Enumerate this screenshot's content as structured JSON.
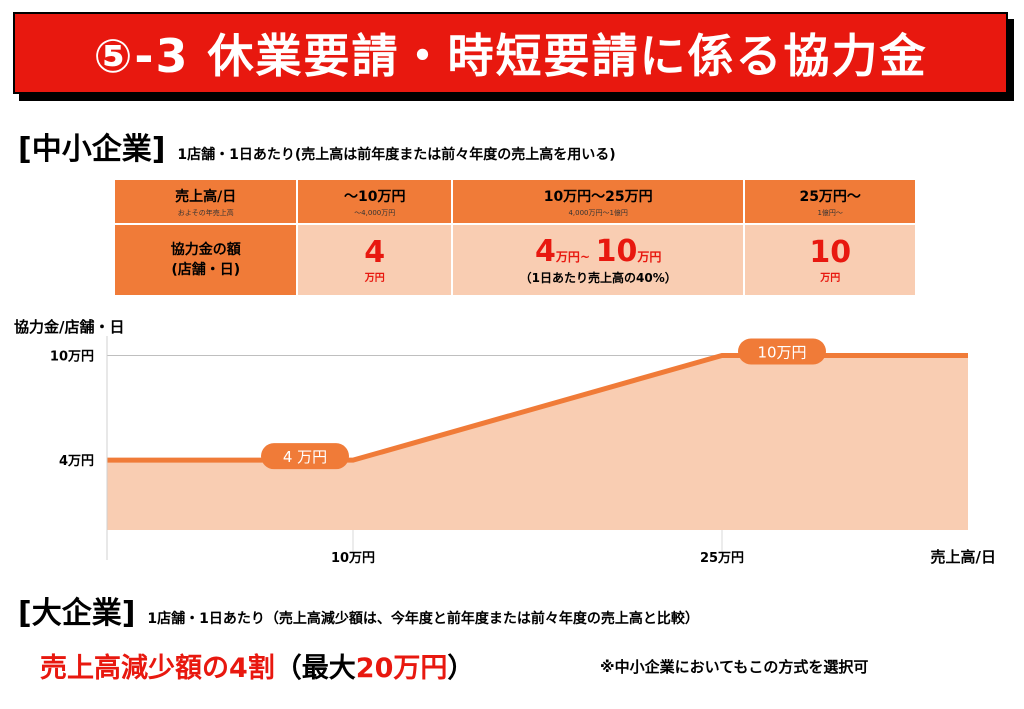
{
  "header": {
    "title": "⑤-3 休業要請・時短要請に係る協力金"
  },
  "sme": {
    "title": "[中小企業]",
    "note": "1店舗・1日あたり(売上高は前年度または前々年度の売上高を用いる)"
  },
  "table": {
    "row_header": {
      "label": "売上高/日",
      "sub": "およその年売上高"
    },
    "columns": [
      {
        "label": "～10万円",
        "sub": "～4,000万円"
      },
      {
        "label": "10万円～25万円",
        "sub": "4,000万円～1億円"
      },
      {
        "label": "25万円～",
        "sub": "1億円～"
      }
    ],
    "value_header": {
      "line1": "協力金の額",
      "line2": "(店舗・日)"
    },
    "values": {
      "col1": {
        "amount": "4",
        "unit": "万円"
      },
      "col2": {
        "low": "4",
        "low_unit": "万円",
        "sep": "~",
        "high": "10",
        "high_unit": "万円",
        "note": "（1日あたり売上高の40%）"
      },
      "col3": {
        "amount": "10",
        "unit": "万円"
      }
    }
  },
  "chart_data": {
    "type": "area",
    "ylabel": "協力金/店舗・日",
    "xlabel": "売上高/日",
    "y_ticks": [
      "10万円",
      "4万円"
    ],
    "x_ticks": [
      "10万円",
      "25万円"
    ],
    "x": [
      0,
      10,
      25,
      35
    ],
    "values": [
      4,
      4,
      10,
      10
    ],
    "xlim": [
      0,
      35
    ],
    "ylim": [
      0,
      11
    ],
    "annotations": [
      "4 万円",
      "10万円"
    ],
    "colors": {
      "line": "#f07b38",
      "fill": "#f9cdb2"
    }
  },
  "large": {
    "title": "[大企業]",
    "note": "1店舗・1日あたり（売上高減少額は、今年度と前年度または前々年度の売上高と比較）",
    "rule_red1": "売上高減少額の4割",
    "rule_black1": "（",
    "rule_black2": "最大",
    "rule_red2": "20万円",
    "rule_black3": "）",
    "option": "※中小企業においてもこの方式を選択可"
  }
}
